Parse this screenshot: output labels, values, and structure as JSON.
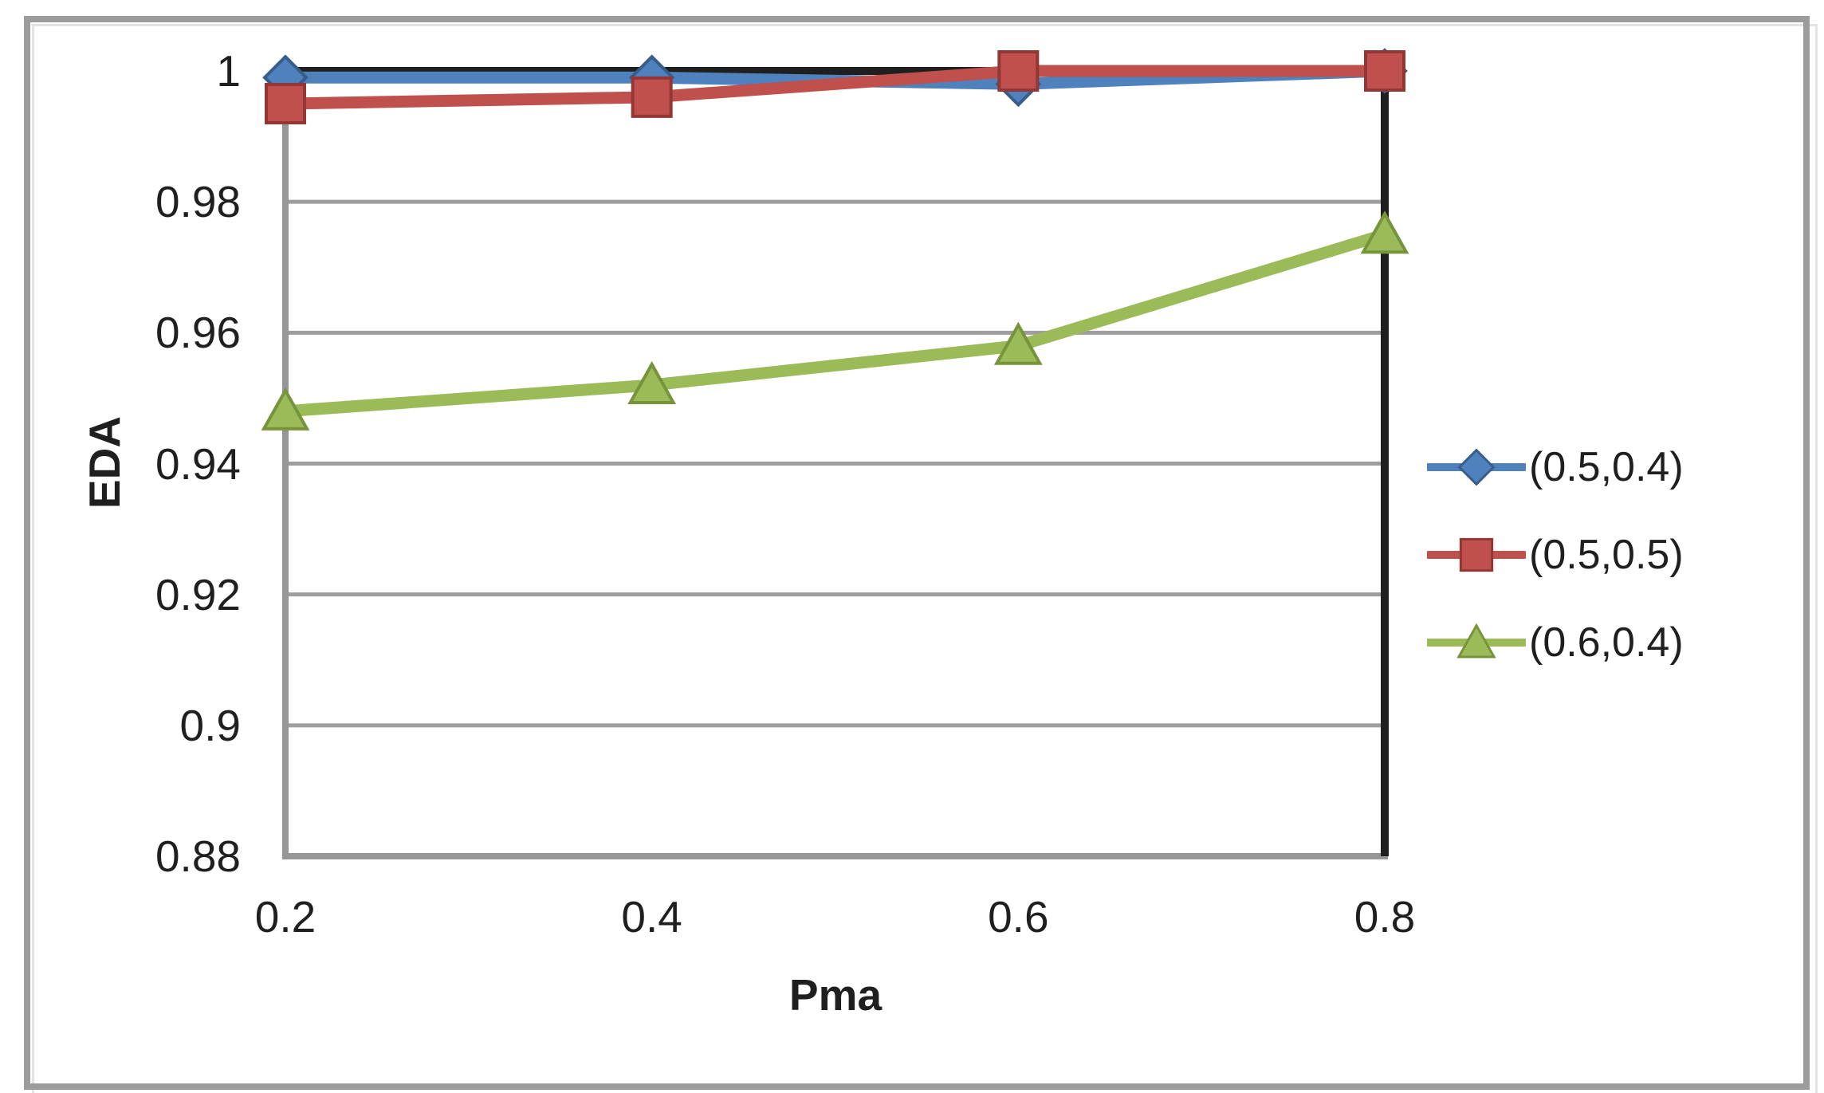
{
  "figure": {
    "background": "#ffffff",
    "frame_border_color": "#9c9c9c"
  },
  "chart_data": {
    "type": "line",
    "title": "",
    "xlabel": "Pma",
    "ylabel": "EDA",
    "x": [
      0.2,
      0.4,
      0.6,
      0.8
    ],
    "x_tick_labels": [
      "0.2",
      "0.4",
      "0.6",
      "0.8"
    ],
    "xlim": [
      0.2,
      0.8
    ],
    "y_ticks": [
      1,
      0.98,
      0.96,
      0.94,
      0.92,
      0.9,
      0.88
    ],
    "y_tick_labels": [
      "1",
      "0.98",
      "0.96",
      "0.94",
      "0.92",
      "0.9",
      "0.88"
    ],
    "ylim": [
      0.88,
      1.0
    ],
    "grid": true,
    "grid_color": "#9e9e9e",
    "axis_color": "#969696",
    "text_color": "#1f1f1f",
    "legend_position": "right",
    "cross_lines": {
      "description": "black axis lines drawn at y max and x max",
      "horizontal_at_y": 1.0,
      "vertical_at_x": 0.8,
      "color": "#1f1f1f"
    },
    "series": [
      {
        "name": "(0.5,0.4)",
        "marker": "diamond",
        "color": "#4F81BD",
        "marker_edge": "#385D8A",
        "values": [
          0.999,
          0.999,
          0.998,
          1.0
        ]
      },
      {
        "name": "(0.5,0.5)",
        "marker": "square",
        "color": "#C0504D",
        "marker_edge": "#943634",
        "values": [
          0.995,
          0.996,
          1.0,
          1.0
        ]
      },
      {
        "name": "(0.6,0.4)",
        "marker": "triangle",
        "color": "#9BBB59",
        "marker_edge": "#77933C",
        "values": [
          0.948,
          0.952,
          0.958,
          0.975
        ]
      }
    ]
  }
}
